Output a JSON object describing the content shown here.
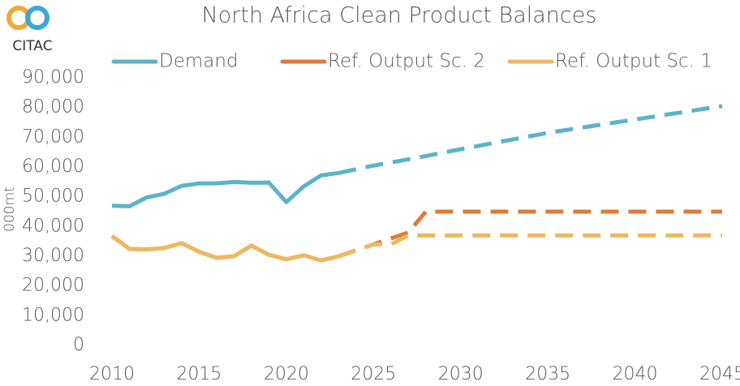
{
  "logo": "CITAC",
  "chart_data": {
    "type": "line",
    "title": "North Africa Clean Product Balances",
    "y_label": "000mt",
    "x": [
      2010,
      2011,
      2012,
      2013,
      2014,
      2015,
      2016,
      2017,
      2018,
      2019,
      2020,
      2021,
      2022,
      2023,
      2025,
      2026,
      2027,
      2028,
      2030,
      2035,
      2040,
      2045
    ],
    "series": [
      {
        "name": "Demand",
        "color": "#5ab4c8",
        "forecast_from": 2023,
        "values": [
          47000,
          46800,
          49800,
          51000,
          53700,
          54500,
          54500,
          55000,
          54700,
          54800,
          48200,
          53500,
          57200,
          58000,
          60500,
          61500,
          62600,
          63700,
          66000,
          71500,
          76000,
          80500
        ]
      },
      {
        "name": "Ref. Output Sc. 2",
        "color": "#e07b39",
        "forecast_from": 2023,
        "values": [
          36800,
          32500,
          32300,
          32800,
          34400,
          31500,
          29500,
          30000,
          33600,
          30500,
          29000,
          30300,
          28600,
          30000,
          34000,
          36000,
          38000,
          45000,
          45000,
          45000,
          45000,
          45000
        ]
      },
      {
        "name": "Ref. Output Sc. 1",
        "color": "#edb860",
        "forecast_from": 2023,
        "values": [
          36800,
          32500,
          32300,
          32800,
          34400,
          31500,
          29500,
          30000,
          33600,
          30500,
          29000,
          30300,
          28600,
          30000,
          34000,
          34000,
          37000,
          37000,
          37000,
          37000,
          37000,
          37000
        ]
      }
    ],
    "xlim": [
      2010,
      2045
    ],
    "xticks": [
      2010,
      2015,
      2020,
      2025,
      2030,
      2035,
      2040,
      2045
    ],
    "ylim": [
      0,
      90000
    ],
    "yticks": [
      0,
      {
        "value": 10000,
        "label": "10,000"
      },
      {
        "value": 20000,
        "label": "20,000"
      },
      {
        "value": 30000,
        "label": "30,000"
      },
      {
        "value": 40000,
        "label": "40,000"
      },
      {
        "value": 50000,
        "label": "50,000"
      },
      {
        "value": 60000,
        "label": "60,000"
      },
      {
        "value": 70000,
        "label": "70,000"
      },
      {
        "value": 80000,
        "label": "80,000"
      },
      {
        "value": 90000,
        "label": "90,000"
      }
    ],
    "legend": "top"
  }
}
